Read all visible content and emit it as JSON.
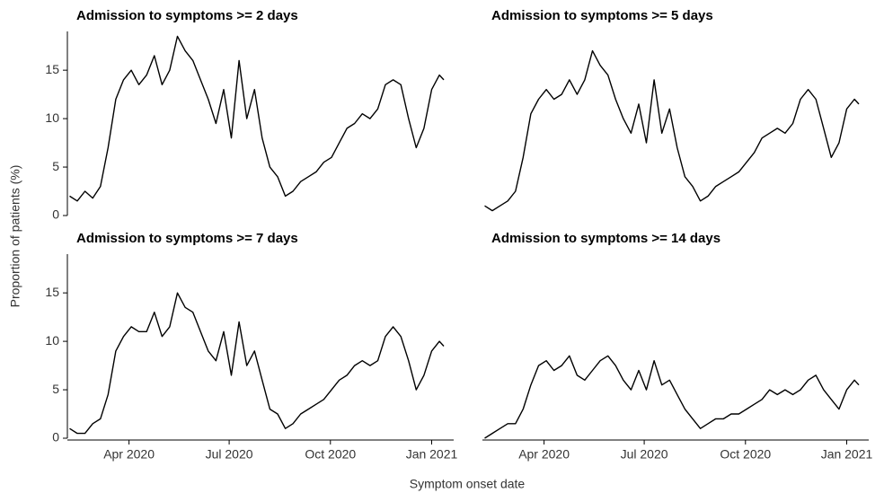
{
  "ylabel": "Proportion of patients (%)",
  "xlabel": "Symptom onset date",
  "chart_data": [
    {
      "type": "line",
      "title": "Admission to symptoms >= 2 days",
      "color": "#000000",
      "xlim": [
        "2020-02-05",
        "2021-01-21"
      ],
      "ylim": [
        0,
        19
      ],
      "yticks": [
        0,
        5,
        10,
        15
      ],
      "xticks": [
        {
          "value": "2020-04-01",
          "label": "Apr 2020"
        },
        {
          "value": "2020-07-01",
          "label": "Jul 2020"
        },
        {
          "value": "2020-10-01",
          "label": "Oct 2020"
        },
        {
          "value": "2021-01-01",
          "label": "Jan 2021"
        }
      ],
      "x": [
        "2020-02-07",
        "2020-02-14",
        "2020-02-21",
        "2020-02-28",
        "2020-03-06",
        "2020-03-13",
        "2020-03-20",
        "2020-03-27",
        "2020-04-03",
        "2020-04-10",
        "2020-04-17",
        "2020-04-24",
        "2020-05-01",
        "2020-05-08",
        "2020-05-15",
        "2020-05-22",
        "2020-05-29",
        "2020-06-05",
        "2020-06-12",
        "2020-06-19",
        "2020-06-26",
        "2020-07-03",
        "2020-07-10",
        "2020-07-17",
        "2020-07-24",
        "2020-07-31",
        "2020-08-07",
        "2020-08-14",
        "2020-08-21",
        "2020-08-28",
        "2020-09-04",
        "2020-09-11",
        "2020-09-18",
        "2020-09-25",
        "2020-10-02",
        "2020-10-09",
        "2020-10-16",
        "2020-10-23",
        "2020-10-30",
        "2020-11-06",
        "2020-11-13",
        "2020-11-20",
        "2020-11-27",
        "2020-12-04",
        "2020-12-11",
        "2020-12-18",
        "2020-12-25",
        "2021-01-01",
        "2021-01-08",
        "2021-01-12"
      ],
      "values": [
        2,
        1.5,
        2.5,
        1.8,
        3,
        7,
        12,
        14,
        15,
        13.5,
        14.5,
        16.5,
        13.5,
        15,
        18.5,
        17,
        16,
        14,
        12,
        9.5,
        13,
        8,
        16,
        10,
        13,
        8,
        5,
        4,
        2,
        2.5,
        3.5,
        4,
        4.5,
        5.5,
        6,
        7.5,
        9,
        9.5,
        10.5,
        10,
        11,
        13.5,
        14,
        13.5,
        10,
        7,
        9,
        13,
        14.5,
        14
      ]
    },
    {
      "type": "line",
      "title": "Admission to symptoms >= 5 days",
      "color": "#000000",
      "xlim": [
        "2020-02-05",
        "2021-01-21"
      ],
      "ylim": [
        0,
        19
      ],
      "yticks": [
        0,
        5,
        10,
        15
      ],
      "xticks": [
        {
          "value": "2020-04-01",
          "label": "Apr 2020"
        },
        {
          "value": "2020-07-01",
          "label": "Jul 2020"
        },
        {
          "value": "2020-10-01",
          "label": "Oct 2020"
        },
        {
          "value": "2021-01-01",
          "label": "Jan 2021"
        }
      ],
      "x": [
        "2020-02-07",
        "2020-02-14",
        "2020-02-21",
        "2020-02-28",
        "2020-03-06",
        "2020-03-13",
        "2020-03-20",
        "2020-03-27",
        "2020-04-03",
        "2020-04-10",
        "2020-04-17",
        "2020-04-24",
        "2020-05-01",
        "2020-05-08",
        "2020-05-15",
        "2020-05-22",
        "2020-05-29",
        "2020-06-05",
        "2020-06-12",
        "2020-06-19",
        "2020-06-26",
        "2020-07-03",
        "2020-07-10",
        "2020-07-17",
        "2020-07-24",
        "2020-07-31",
        "2020-08-07",
        "2020-08-14",
        "2020-08-21",
        "2020-08-28",
        "2020-09-04",
        "2020-09-11",
        "2020-09-18",
        "2020-09-25",
        "2020-10-02",
        "2020-10-09",
        "2020-10-16",
        "2020-10-23",
        "2020-10-30",
        "2020-11-06",
        "2020-11-13",
        "2020-11-20",
        "2020-11-27",
        "2020-12-04",
        "2020-12-11",
        "2020-12-18",
        "2020-12-25",
        "2021-01-01",
        "2021-01-08",
        "2021-01-12"
      ],
      "values": [
        1,
        0.5,
        1,
        1.5,
        2.5,
        6,
        10.5,
        12,
        13,
        12,
        12.5,
        14,
        12.5,
        14,
        17,
        15.5,
        14.5,
        12,
        10,
        8.5,
        11.5,
        7.5,
        14,
        8.5,
        11,
        7,
        4,
        3,
        1.5,
        2,
        3,
        3.5,
        4,
        4.5,
        5.5,
        6.5,
        8,
        8.5,
        9,
        8.5,
        9.5,
        12,
        13,
        12,
        9,
        6,
        7.5,
        11,
        12,
        11.5
      ]
    },
    {
      "type": "line",
      "title": "Admission to symptoms >= 7 days",
      "color": "#000000",
      "xlim": [
        "2020-02-05",
        "2021-01-21"
      ],
      "ylim": [
        0,
        19
      ],
      "yticks": [
        0,
        5,
        10,
        15
      ],
      "xticks": [
        {
          "value": "2020-04-01",
          "label": "Apr 2020"
        },
        {
          "value": "2020-07-01",
          "label": "Jul 2020"
        },
        {
          "value": "2020-10-01",
          "label": "Oct 2020"
        },
        {
          "value": "2021-01-01",
          "label": "Jan 2021"
        }
      ],
      "x": [
        "2020-02-07",
        "2020-02-14",
        "2020-02-21",
        "2020-02-28",
        "2020-03-06",
        "2020-03-13",
        "2020-03-20",
        "2020-03-27",
        "2020-04-03",
        "2020-04-10",
        "2020-04-17",
        "2020-04-24",
        "2020-05-01",
        "2020-05-08",
        "2020-05-15",
        "2020-05-22",
        "2020-05-29",
        "2020-06-05",
        "2020-06-12",
        "2020-06-19",
        "2020-06-26",
        "2020-07-03",
        "2020-07-10",
        "2020-07-17",
        "2020-07-24",
        "2020-07-31",
        "2020-08-07",
        "2020-08-14",
        "2020-08-21",
        "2020-08-28",
        "2020-09-04",
        "2020-09-11",
        "2020-09-18",
        "2020-09-25",
        "2020-10-02",
        "2020-10-09",
        "2020-10-16",
        "2020-10-23",
        "2020-10-30",
        "2020-11-06",
        "2020-11-13",
        "2020-11-20",
        "2020-11-27",
        "2020-12-04",
        "2020-12-11",
        "2020-12-18",
        "2020-12-25",
        "2021-01-01",
        "2021-01-08",
        "2021-01-12"
      ],
      "values": [
        1,
        0.5,
        0.5,
        1.5,
        2,
        4.5,
        9,
        10.5,
        11.5,
        11,
        11,
        13,
        10.5,
        11.5,
        15,
        13.5,
        13,
        11,
        9,
        8,
        11,
        6.5,
        12,
        7.5,
        9,
        6,
        3,
        2.5,
        1,
        1.5,
        2.5,
        3,
        3.5,
        4,
        5,
        6,
        6.5,
        7.5,
        8,
        7.5,
        8,
        10.5,
        11.5,
        10.5,
        8,
        5,
        6.5,
        9,
        10,
        9.5
      ]
    },
    {
      "type": "line",
      "title": "Admission to symptoms >= 14 days",
      "color": "#000000",
      "xlim": [
        "2020-02-05",
        "2021-01-21"
      ],
      "ylim": [
        0,
        19
      ],
      "yticks": [
        0,
        5,
        10,
        15
      ],
      "xticks": [
        {
          "value": "2020-04-01",
          "label": "Apr 2020"
        },
        {
          "value": "2020-07-01",
          "label": "Jul 2020"
        },
        {
          "value": "2020-10-01",
          "label": "Oct 2020"
        },
        {
          "value": "2021-01-01",
          "label": "Jan 2021"
        }
      ],
      "x": [
        "2020-02-07",
        "2020-02-14",
        "2020-02-21",
        "2020-02-28",
        "2020-03-06",
        "2020-03-13",
        "2020-03-20",
        "2020-03-27",
        "2020-04-03",
        "2020-04-10",
        "2020-04-17",
        "2020-04-24",
        "2020-05-01",
        "2020-05-08",
        "2020-05-15",
        "2020-05-22",
        "2020-05-29",
        "2020-06-05",
        "2020-06-12",
        "2020-06-19",
        "2020-06-26",
        "2020-07-03",
        "2020-07-10",
        "2020-07-17",
        "2020-07-24",
        "2020-07-31",
        "2020-08-07",
        "2020-08-14",
        "2020-08-21",
        "2020-08-28",
        "2020-09-04",
        "2020-09-11",
        "2020-09-18",
        "2020-09-25",
        "2020-10-02",
        "2020-10-09",
        "2020-10-16",
        "2020-10-23",
        "2020-10-30",
        "2020-11-06",
        "2020-11-13",
        "2020-11-20",
        "2020-11-27",
        "2020-12-04",
        "2020-12-11",
        "2020-12-18",
        "2020-12-25",
        "2021-01-01",
        "2021-01-08",
        "2021-01-12"
      ],
      "values": [
        0,
        0.5,
        1,
        1.5,
        1.5,
        3,
        5.5,
        7.5,
        8,
        7,
        7.5,
        8.5,
        6.5,
        6,
        7,
        8,
        8.5,
        7.5,
        6,
        5,
        7,
        5,
        8,
        5.5,
        6,
        4.5,
        3,
        2,
        1,
        1.5,
        2,
        2,
        2.5,
        2.5,
        3,
        3.5,
        4,
        5,
        4.5,
        5,
        4.5,
        5,
        6,
        6.5,
        5,
        4,
        3,
        5,
        6,
        5.5
      ]
    }
  ]
}
